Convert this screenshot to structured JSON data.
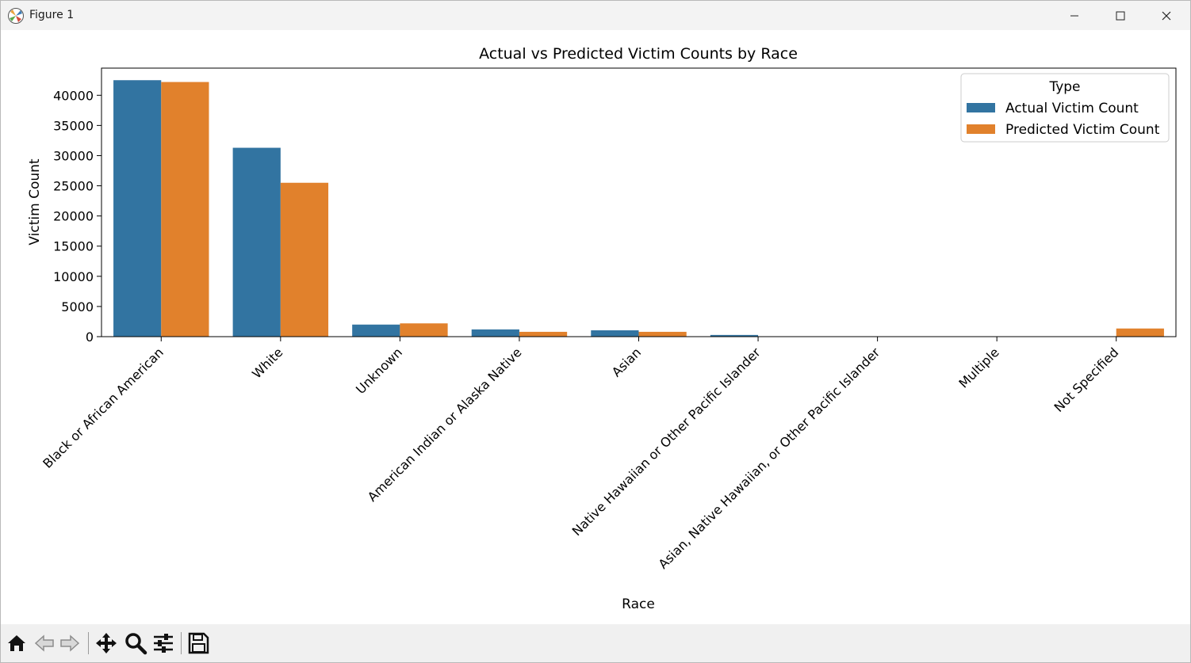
{
  "window": {
    "title": "Figure 1"
  },
  "toolbar": {
    "buttons": [
      {
        "name": "home",
        "icon": "home-icon"
      },
      {
        "name": "back",
        "icon": "arrow-left-icon"
      },
      {
        "name": "forward",
        "icon": "arrow-right-icon"
      },
      {
        "name": "pan",
        "icon": "move-icon"
      },
      {
        "name": "zoom",
        "icon": "magnifier-icon"
      },
      {
        "name": "configure-subplots",
        "icon": "sliders-icon"
      },
      {
        "name": "save",
        "icon": "floppy-disk-icon"
      }
    ]
  },
  "chart_data": {
    "type": "bar",
    "title": "Actual vs Predicted Victim Counts by Race",
    "xlabel": "Race",
    "ylabel": "Victim Count",
    "ylim": [
      0,
      44500
    ],
    "yticks": [
      0,
      5000,
      10000,
      15000,
      20000,
      25000,
      30000,
      35000,
      40000
    ],
    "categories": [
      "Black or African American",
      "White",
      "Unknown",
      "American Indian or Alaska Native",
      "Asian",
      "Native Hawaiian or Other Pacific Islander",
      "Asian, Native Hawaiian, or Other Pacific Islander",
      "Multiple",
      "Not Specified"
    ],
    "series": [
      {
        "name": "Actual Victim Count",
        "color": "#3274a1",
        "values": [
          42500,
          31300,
          2000,
          1200,
          1050,
          280,
          30,
          20,
          0
        ]
      },
      {
        "name": "Predicted Victim Count",
        "color": "#e1812c",
        "values": [
          42200,
          25500,
          2200,
          800,
          800,
          60,
          20,
          20,
          1350
        ]
      }
    ],
    "legend": {
      "title": "Type",
      "position": "upper right"
    },
    "grid": false
  }
}
